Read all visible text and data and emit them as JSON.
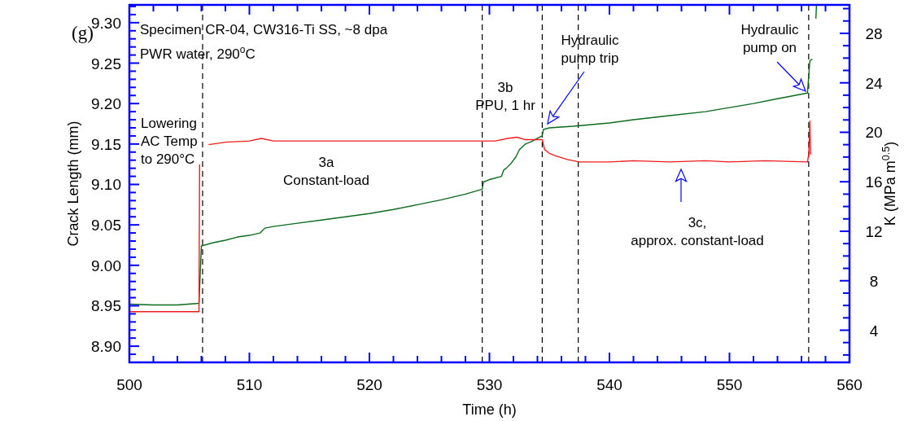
{
  "chart_data": {
    "type": "line",
    "xlabel": "Time (h)",
    "ylabel": "Crack Length (mm)",
    "y2label": "K (MPa m$^{0.5}$)",
    "annotations": [
      "(g)",
      "Specimen CR-04, CW316-Ti SS, ~8 dpa",
      "PWR water, 290$^{o}$C",
      "Lowering\nAC Temp\nto 290°C",
      "3a\nConstant-load",
      "3b\nPPU, 1 hr",
      "Hydraulic\npump trip",
      "Hydraulic\npump on",
      "3c,\napprox. constant-load"
    ],
    "xlim": [
      500,
      560
    ],
    "xticks": [
      500,
      {
        "value": 502,
        "label": null
      },
      {
        "value": 504,
        "label": null
      },
      {
        "value": 506,
        "label": null
      },
      {
        "value": 508,
        "label": null
      },
      510,
      {
        "value": 512,
        "label": null
      },
      {
        "value": 514,
        "label": null
      },
      {
        "value": 516,
        "label": null
      },
      {
        "value": 518,
        "label": null
      },
      520,
      {
        "value": 522,
        "label": null
      },
      {
        "value": 524,
        "label": null
      },
      {
        "value": 526,
        "label": null
      },
      {
        "value": 528,
        "label": null
      },
      530,
      {
        "value": 532,
        "label": null
      },
      {
        "value": 534,
        "label": null
      },
      {
        "value": 536,
        "label": null
      },
      {
        "value": 538,
        "label": null
      },
      540,
      {
        "value": 542,
        "label": null
      },
      {
        "value": 544,
        "label": null
      },
      {
        "value": 546,
        "label": null
      },
      {
        "value": 548,
        "label": null
      },
      550,
      {
        "value": 552,
        "label": null
      },
      {
        "value": 554,
        "label": null
      },
      {
        "value": 556,
        "label": null
      },
      {
        "value": 558,
        "label": null
      },
      560
    ],
    "ylim": [
      8.88,
      9.322
    ],
    "yticks": [
      {
        "value": 8.89,
        "label": null
      },
      {
        "value": 8.9,
        "label": "8.90"
      },
      {
        "value": 8.91,
        "label": null
      },
      {
        "value": 8.92,
        "label": null
      },
      {
        "value": 8.93,
        "label": null
      },
      {
        "value": 8.94,
        "label": null
      },
      8.95,
      {
        "value": 8.96,
        "label": null
      },
      {
        "value": 8.97,
        "label": null
      },
      {
        "value": 8.98,
        "label": null
      },
      {
        "value": 8.99,
        "label": null
      },
      {
        "value": 9.0,
        "label": "9.00"
      },
      {
        "value": 9.01,
        "label": null
      },
      {
        "value": 9.02,
        "label": null
      },
      {
        "value": 9.03,
        "label": null
      },
      {
        "value": 9.04,
        "label": null
      },
      9.05,
      {
        "value": 9.06,
        "label": null
      },
      {
        "value": 9.07,
        "label": null
      },
      {
        "value": 9.08,
        "label": null
      },
      {
        "value": 9.09,
        "label": null
      },
      {
        "value": 9.1,
        "label": "9.10"
      },
      {
        "value": 9.11,
        "label": null
      },
      {
        "value": 9.12,
        "label": null
      },
      {
        "value": 9.13,
        "label": null
      },
      {
        "value": 9.14,
        "label": null
      },
      9.15,
      {
        "value": 9.16,
        "label": null
      },
      {
        "value": 9.17,
        "label": null
      },
      {
        "value": 9.18,
        "label": null
      },
      {
        "value": 9.19,
        "label": null
      },
      {
        "value": 9.2,
        "label": "9.20"
      },
      {
        "value": 9.21,
        "label": null
      },
      {
        "value": 9.22,
        "label": null
      },
      {
        "value": 9.23,
        "label": null
      },
      {
        "value": 9.24,
        "label": null
      },
      9.25,
      {
        "value": 9.26,
        "label": null
      },
      {
        "value": 9.27,
        "label": null
      },
      {
        "value": 9.28,
        "label": null
      },
      {
        "value": 9.29,
        "label": null
      },
      {
        "value": 9.3,
        "label": "9.30"
      },
      {
        "value": 9.31,
        "label": null
      },
      {
        "value": 9.32,
        "label": null
      }
    ],
    "y2lim": [
      1.4,
      30.3
    ],
    "y2ticks": [
      {
        "value": 2,
        "label": null
      },
      {
        "value": 3,
        "label": null
      },
      4,
      {
        "value": 5,
        "label": null
      },
      {
        "value": 6,
        "label": null
      },
      {
        "value": 7,
        "label": null
      },
      8,
      {
        "value": 9,
        "label": null
      },
      {
        "value": 10,
        "label": null
      },
      {
        "value": 11,
        "label": null
      },
      12,
      {
        "value": 13,
        "label": null
      },
      {
        "value": 14,
        "label": null
      },
      {
        "value": 15,
        "label": null
      },
      16,
      {
        "value": 17,
        "label": null
      },
      {
        "value": 18,
        "label": null
      },
      {
        "value": 19,
        "label": null
      },
      20,
      {
        "value": 21,
        "label": null
      },
      {
        "value": 22,
        "label": null
      },
      {
        "value": 23,
        "label": null
      },
      24,
      {
        "value": 25,
        "label": null
      },
      {
        "value": 26,
        "label": null
      },
      {
        "value": 27,
        "label": null
      },
      28,
      {
        "value": 29,
        "label": null
      },
      {
        "value": 30,
        "label": null
      }
    ],
    "ref_lines": [
      {
        "axis": "x",
        "value": 506.1,
        "color": "#000000",
        "line_style": "dashed"
      },
      {
        "axis": "x",
        "value": 529.4,
        "color": "#000000",
        "line_style": "dashed"
      },
      {
        "axis": "x",
        "value": 534.4,
        "color": "#000000",
        "line_style": "dashed"
      },
      {
        "axis": "x",
        "value": 537.4,
        "color": "#000000",
        "line_style": "dashed"
      },
      {
        "axis": "x",
        "value": 556.6,
        "color": "#000000",
        "line_style": "dashed"
      }
    ],
    "series": [
      {
        "color": "#0b6b1e",
        "x": [
          500,
          502,
          504,
          505.8,
          506.0,
          507,
          508,
          509,
          510,
          510.9,
          511.3,
          512,
          514,
          516,
          518,
          520,
          522,
          524,
          526,
          528,
          529.4,
          529.5,
          530,
          531,
          531.2,
          531.4,
          531.8,
          532.2,
          532.5,
          533,
          533.5,
          534,
          534.4,
          534.5,
          535,
          537,
          540,
          542,
          545,
          548,
          550,
          552,
          554,
          556.5,
          556.7,
          556.9,
          557.05,
          557.2,
          557.25
        ],
        "values": [
          8.952,
          8.951,
          8.951,
          8.953,
          9.024,
          9.028,
          9.031,
          9.035,
          9.037,
          9.04,
          9.046,
          9.048,
          9.052,
          9.056,
          9.06,
          9.064,
          9.069,
          9.075,
          9.081,
          9.088,
          9.094,
          9.103,
          9.106,
          9.11,
          9.118,
          9.12,
          9.126,
          9.134,
          9.143,
          9.15,
          9.153,
          9.157,
          9.16,
          9.168,
          9.17,
          9.172,
          9.176,
          9.18,
          9.185,
          9.19,
          9.195,
          9.2,
          9.206,
          9.213,
          9.253,
          9.255,
          null,
          9.305,
          9.322
        ]
      },
      {
        "color": "#ee1c1c",
        "axis": "y2",
        "x": [
          500,
          505.8,
          505.85,
          506.2,
          506.6,
          508,
          510,
          511,
          512,
          515,
          520,
          525,
          529.5,
          530.5,
          531.5,
          532.3,
          533,
          534.4,
          534.6,
          535,
          535.5,
          536.5,
          537.5,
          540,
          542,
          545,
          548,
          550,
          553,
          556.5,
          556.6,
          556.7,
          556.75
        ],
        "values": [
          5.5,
          5.5,
          17.4,
          null,
          19.0,
          19.2,
          19.3,
          19.5,
          19.3,
          19.3,
          19.3,
          19.3,
          19.3,
          19.3,
          19.5,
          19.6,
          19.4,
          19.4,
          18.6,
          18.3,
          18.1,
          17.8,
          17.6,
          17.6,
          17.7,
          17.6,
          17.7,
          17.6,
          17.7,
          17.6,
          18.2,
          20.9,
          18.2
        ]
      }
    ]
  }
}
